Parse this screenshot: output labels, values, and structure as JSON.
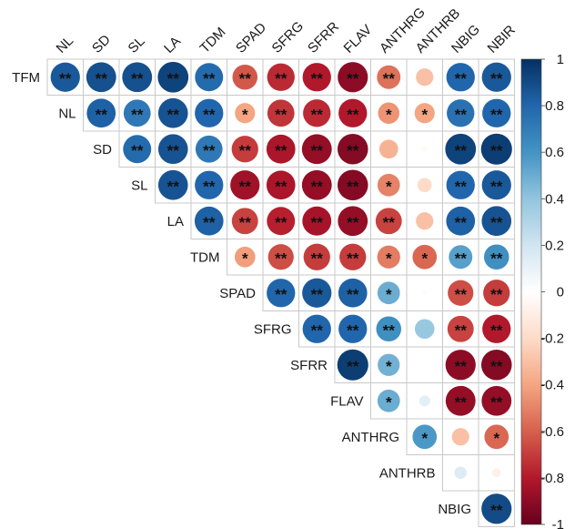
{
  "chart_data": {
    "type": "heatmap",
    "subtype": "correlation-matrix-upper-triangle",
    "variables": [
      "TFM",
      "NL",
      "SD",
      "SL",
      "LA",
      "TDM",
      "SPAD",
      "SFRG",
      "SFRR",
      "FLAV",
      "ANTHRG",
      "ANTHRB",
      "NBIG",
      "NBIR"
    ],
    "row_labels": [
      "TFM",
      "NL",
      "SD",
      "SL",
      "LA",
      "TDM",
      "SPAD",
      "SFRG",
      "SFRR",
      "FLAV",
      "ANTHRG",
      "ANTHRB",
      "NBIG"
    ],
    "column_labels": [
      "NL",
      "SD",
      "SL",
      "LA",
      "TDM",
      "SPAD",
      "SFRG",
      "SFRR",
      "FLAV",
      "ANTHRG",
      "ANTHRB",
      "NBIG",
      "NBIR"
    ],
    "correlations": [
      [
        0.85,
        0.88,
        0.88,
        0.93,
        0.78,
        -0.62,
        -0.75,
        -0.8,
        -0.9,
        -0.55,
        -0.3,
        0.8,
        0.85
      ],
      [
        0.82,
        0.72,
        0.87,
        0.8,
        -0.4,
        -0.72,
        -0.75,
        -0.8,
        -0.45,
        -0.4,
        0.75,
        0.8
      ],
      [
        0.78,
        0.87,
        0.72,
        -0.7,
        -0.82,
        -0.88,
        -0.92,
        -0.35,
        -0.03,
        0.93,
        0.95
      ],
      [
        0.87,
        0.8,
        -0.85,
        -0.82,
        -0.88,
        -0.92,
        -0.5,
        -0.2,
        0.8,
        0.85
      ],
      [
        0.82,
        -0.68,
        -0.78,
        -0.83,
        -0.88,
        -0.68,
        -0.3,
        0.82,
        0.87
      ],
      [
        -0.42,
        -0.65,
        -0.7,
        -0.7,
        -0.52,
        -0.58,
        0.55,
        0.62
      ],
      [
        0.8,
        0.85,
        0.82,
        0.5,
        -0.02,
        -0.65,
        -0.7
      ],
      [
        0.8,
        0.8,
        0.62,
        0.38,
        -0.68,
        -0.8
      ],
      [
        0.95,
        0.48,
        0.0,
        -0.9,
        -0.92
      ],
      [
        0.5,
        0.12,
        -0.88,
        -0.88
      ],
      [
        0.58,
        -0.3,
        -0.58
      ],
      [
        0.15,
        -0.08
      ],
      [
        0.9
      ]
    ],
    "significance": [
      [
        "**",
        "**",
        "**",
        "**",
        "**",
        "**",
        "**",
        "**",
        "**",
        "**",
        "",
        "**",
        "**"
      ],
      [
        "**",
        "**",
        "**",
        "**",
        "*",
        "**",
        "**",
        "**",
        "*",
        "*",
        "**",
        "**"
      ],
      [
        "**",
        "**",
        "**",
        "**",
        "**",
        "**",
        "**",
        "",
        "",
        "**",
        "**"
      ],
      [
        "**",
        "**",
        "**",
        "**",
        "**",
        "**",
        "*",
        "",
        "**",
        "**"
      ],
      [
        "**",
        "**",
        "**",
        "**",
        "**",
        "**",
        "",
        "**",
        "**"
      ],
      [
        "*",
        "**",
        "**",
        "**",
        "*",
        "*",
        "**",
        "**"
      ],
      [
        "**",
        "**",
        "**",
        "*",
        "",
        "**",
        "**"
      ],
      [
        "**",
        "**",
        "**",
        "",
        "**",
        "**"
      ],
      [
        "**",
        "*",
        "",
        "**",
        "**"
      ],
      [
        "*",
        "",
        "**",
        "**"
      ],
      [
        "*",
        "",
        "*"
      ],
      [
        "",
        ""
      ],
      [
        "**"
      ]
    ],
    "color_scale": {
      "range": [
        -1,
        1
      ],
      "tick_labels": [
        "1",
        "0.8",
        "0.6",
        "0.4",
        "0.2",
        "0",
        "-0.2",
        "-0.4",
        "-0.6",
        "-0.8",
        "-1"
      ],
      "stops": [
        {
          "value": -1.0,
          "color": "#67001f"
        },
        {
          "value": -0.8,
          "color": "#b2182b"
        },
        {
          "value": -0.6,
          "color": "#d6604d"
        },
        {
          "value": -0.4,
          "color": "#f4a582"
        },
        {
          "value": -0.2,
          "color": "#fddbc7"
        },
        {
          "value": 0.0,
          "color": "#ffffff"
        },
        {
          "value": 0.2,
          "color": "#d1e5f0"
        },
        {
          "value": 0.4,
          "color": "#92c5de"
        },
        {
          "value": 0.6,
          "color": "#4393c3"
        },
        {
          "value": 0.8,
          "color": "#2166ac"
        },
        {
          "value": 1.0,
          "color": "#053061"
        }
      ]
    },
    "legend_position": "right",
    "grid": true
  }
}
